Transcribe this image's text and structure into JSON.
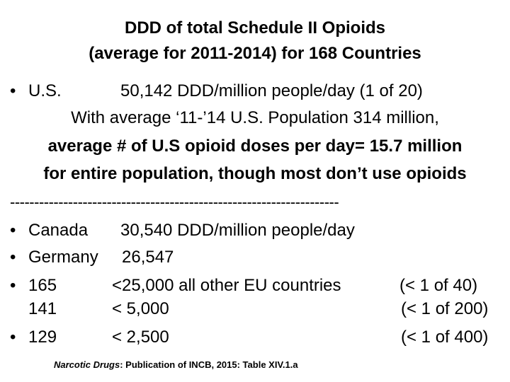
{
  "title": {
    "line1": "DDD of total Schedule II Opioids",
    "line2": "(average for 2011-2014) for 168 Countries"
  },
  "bullet_glyph": "•",
  "us": {
    "label": "U.S.",
    "value": "50,142  DDD/million people/day (1 of 20)",
    "line2": "With average ‘11-’14 U.S. Population 314 million,",
    "line3": "average # of U.S opioid doses per day= 15.7 million",
    "line4": "for entire population, though most don’t use opioids"
  },
  "separator": "--------------------------------------------------------------------",
  "rows": [
    {
      "label": "Canada",
      "value": "30,540  DDD/million people/day",
      "ratio": ""
    },
    {
      "label": "Germany",
      "value": "26,547",
      "ratio": ""
    },
    {
      "label": "165",
      "value": "<25,000 all other EU countries",
      "ratio": "(< 1 of  40)"
    },
    {
      "label": "141",
      "value": "<  5,000",
      "ratio": "(< 1 of 200)"
    },
    {
      "label": "129",
      "value": "<  2,500",
      "ratio": "(< 1 of 400)"
    }
  ],
  "citation": {
    "italic": "Narcotic Drugs",
    "rest": ": Publication of INCB, 2015: Table XIV.1.a"
  }
}
